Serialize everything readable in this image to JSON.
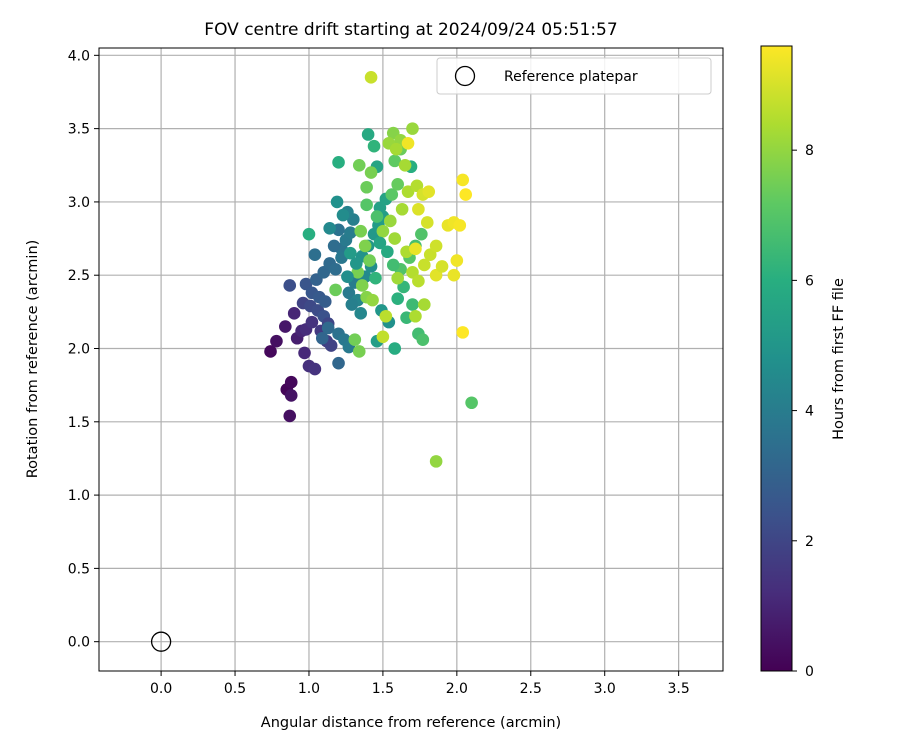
{
  "chart_data": {
    "type": "scatter",
    "title": "FOV centre drift starting at 2024/09/24 05:51:57",
    "xlabel": "Angular distance from reference (arcmin)",
    "ylabel": "Rotation from reference (arcmin)",
    "xlim": [
      -0.42,
      3.8
    ],
    "ylim": [
      -0.2,
      4.05
    ],
    "xticks": [
      "0.0",
      "0.5",
      "1.0",
      "1.5",
      "2.0",
      "2.5",
      "3.0",
      "3.5"
    ],
    "yticks": [
      "0.0",
      "0.5",
      "1.0",
      "1.5",
      "2.0",
      "2.5",
      "3.0",
      "3.5",
      "4.0"
    ],
    "grid": true,
    "colormap": "viridis",
    "colorbar": {
      "label": "Hours from first FF file",
      "ticks": [
        "0",
        "2",
        "4",
        "6",
        "8"
      ],
      "range": [
        0,
        9.6
      ]
    },
    "legend": {
      "location": "upper right",
      "entries": [
        {
          "label": "Reference platepar",
          "marker": "open-circle"
        }
      ]
    },
    "reference_point": {
      "x": 0.0,
      "y": 0.0
    },
    "series": [
      {
        "points": [
          [
            0.85,
            1.72,
            0.1
          ],
          [
            0.88,
            1.77,
            0.2
          ],
          [
            0.87,
            1.54,
            0.4
          ],
          [
            0.88,
            1.68,
            0.5
          ],
          [
            0.74,
            1.98,
            0.2
          ],
          [
            0.78,
            2.05,
            0.4
          ],
          [
            0.84,
            2.15,
            0.6
          ],
          [
            0.92,
            2.07,
            0.8
          ],
          [
            0.95,
            2.12,
            1.0
          ],
          [
            0.97,
            1.97,
            1.1
          ],
          [
            1.0,
            1.88,
            1.3
          ],
          [
            1.04,
            1.86,
            1.4
          ],
          [
            0.9,
            2.24,
            1.0
          ],
          [
            0.98,
            2.13,
            1.2
          ],
          [
            1.02,
            2.18,
            1.4
          ],
          [
            1.08,
            2.12,
            1.6
          ],
          [
            1.12,
            2.05,
            1.7
          ],
          [
            1.15,
            2.02,
            1.9
          ],
          [
            0.96,
            2.31,
            1.9
          ],
          [
            1.01,
            2.29,
            2.1
          ],
          [
            1.06,
            2.26,
            2.2
          ],
          [
            1.1,
            2.22,
            2.4
          ],
          [
            1.13,
            2.17,
            2.0
          ],
          [
            0.87,
            2.43,
            2.3
          ],
          [
            0.98,
            2.44,
            2.5
          ],
          [
            1.02,
            2.38,
            2.6
          ],
          [
            1.07,
            2.35,
            2.7
          ],
          [
            1.11,
            2.32,
            2.8
          ],
          [
            1.05,
            2.47,
            3.0
          ],
          [
            1.1,
            2.52,
            3.2
          ],
          [
            1.14,
            2.58,
            3.3
          ],
          [
            1.18,
            2.54,
            3.4
          ],
          [
            1.04,
            2.64,
            3.5
          ],
          [
            1.09,
            2.07,
            3.1
          ],
          [
            1.13,
            2.14,
            3.3
          ],
          [
            1.2,
            2.1,
            3.6
          ],
          [
            1.24,
            2.06,
            3.8
          ],
          [
            1.2,
            1.9,
            3.2
          ],
          [
            1.27,
            2.01,
            3.9
          ],
          [
            1.22,
            2.68,
            3.7
          ],
          [
            1.25,
            2.74,
            3.9
          ],
          [
            1.28,
            2.79,
            4.0
          ],
          [
            1.3,
            2.88,
            4.1
          ],
          [
            1.26,
            2.93,
            4.2
          ],
          [
            1.2,
            2.81,
            3.6
          ],
          [
            1.17,
            2.7,
            3.4
          ],
          [
            1.22,
            2.62,
            3.8
          ],
          [
            1.31,
            2.45,
            4.0
          ],
          [
            1.27,
            2.38,
            3.9
          ],
          [
            1.33,
            2.33,
            4.3
          ],
          [
            1.35,
            2.24,
            4.4
          ],
          [
            1.29,
            2.3,
            4.1
          ],
          [
            1.14,
            2.82,
            4.5
          ],
          [
            1.19,
            3.0,
            4.8
          ],
          [
            1.23,
            2.91,
            4.6
          ],
          [
            1.38,
            2.49,
            4.5
          ],
          [
            1.42,
            2.56,
            4.7
          ],
          [
            1.36,
            2.63,
            4.9
          ],
          [
            1.4,
            2.7,
            5.0
          ],
          [
            1.44,
            2.78,
            5.1
          ],
          [
            1.47,
            2.84,
            5.2
          ],
          [
            1.5,
            2.9,
            5.3
          ],
          [
            1.48,
            2.96,
            5.4
          ],
          [
            1.52,
            3.02,
            5.5
          ],
          [
            1.46,
            3.24,
            5.6
          ],
          [
            1.2,
            3.27,
            6.0
          ],
          [
            1.4,
            3.46,
            5.8
          ],
          [
            1.44,
            3.38,
            6.2
          ],
          [
            1.54,
            2.18,
            4.8
          ],
          [
            1.49,
            2.26,
            5.0
          ],
          [
            1.58,
            2.0,
            5.9
          ],
          [
            1.46,
            2.05,
            5.3
          ],
          [
            1.6,
            2.34,
            6.1
          ],
          [
            1.64,
            2.42,
            6.3
          ],
          [
            1.66,
            2.21,
            6.4
          ],
          [
            1.7,
            2.3,
            6.5
          ],
          [
            1.74,
            2.1,
            6.6
          ],
          [
            1.77,
            2.06,
            6.8
          ],
          [
            1.62,
            2.54,
            6.9
          ],
          [
            1.68,
            2.62,
            7.0
          ],
          [
            1.72,
            2.7,
            6.7
          ],
          [
            1.76,
            2.78,
            6.9
          ],
          [
            1.56,
            3.05,
            7.1
          ],
          [
            1.6,
            3.12,
            7.3
          ],
          [
            1.58,
            3.28,
            7.2
          ],
          [
            1.62,
            3.36,
            7.4
          ],
          [
            1.69,
            3.24,
            6.0
          ],
          [
            1.0,
            2.78,
            6.0
          ],
          [
            1.34,
            3.25,
            7.5
          ],
          [
            1.39,
            3.1,
            7.4
          ],
          [
            1.42,
            3.2,
            7.6
          ],
          [
            1.35,
            2.8,
            7.6
          ],
          [
            1.38,
            2.7,
            7.7
          ],
          [
            1.41,
            2.6,
            7.5
          ],
          [
            1.33,
            2.52,
            7.6
          ],
          [
            1.36,
            2.43,
            7.7
          ],
          [
            1.39,
            2.35,
            7.8
          ],
          [
            1.43,
            2.33,
            8.0
          ],
          [
            1.31,
            2.06,
            7.5
          ],
          [
            1.34,
            1.98,
            7.6
          ],
          [
            1.18,
            2.4,
            7.4
          ],
          [
            1.57,
            3.47,
            7.8
          ],
          [
            1.62,
            3.42,
            8.0
          ],
          [
            1.7,
            3.5,
            8.1
          ],
          [
            1.54,
            3.4,
            8.1
          ],
          [
            1.59,
            3.36,
            8.3
          ],
          [
            1.65,
            3.25,
            8.3
          ],
          [
            1.5,
            2.8,
            8.0
          ],
          [
            1.55,
            2.87,
            8.1
          ],
          [
            1.58,
            2.75,
            8.2
          ],
          [
            1.63,
            2.95,
            8.3
          ],
          [
            1.67,
            3.07,
            8.4
          ],
          [
            1.73,
            3.11,
            8.5
          ],
          [
            1.66,
            2.66,
            8.4
          ],
          [
            1.7,
            2.52,
            8.5
          ],
          [
            1.74,
            2.46,
            8.6
          ],
          [
            1.78,
            2.3,
            8.3
          ],
          [
            1.72,
            2.22,
            8.4
          ],
          [
            1.6,
            2.48,
            8.2
          ],
          [
            1.52,
            2.22,
            8.6
          ],
          [
            1.5,
            2.08,
            8.7
          ],
          [
            1.78,
            2.57,
            8.8
          ],
          [
            1.82,
            2.64,
            8.8
          ],
          [
            1.86,
            2.7,
            8.9
          ],
          [
            1.8,
            2.86,
            9.0
          ],
          [
            1.74,
            2.95,
            9.1
          ],
          [
            1.77,
            3.05,
            9.0
          ],
          [
            1.81,
            3.07,
            9.2
          ],
          [
            1.86,
            2.5,
            9.2
          ],
          [
            1.9,
            2.56,
            9.0
          ],
          [
            1.94,
            2.84,
            9.3
          ],
          [
            1.98,
            2.86,
            9.4
          ],
          [
            2.0,
            2.6,
            9.4
          ],
          [
            1.98,
            2.5,
            9.3
          ],
          [
            2.02,
            2.84,
            9.5
          ],
          [
            2.04,
            3.15,
            9.5
          ],
          [
            2.06,
            3.05,
            9.6
          ],
          [
            2.04,
            2.11,
            9.6
          ],
          [
            1.67,
            3.4,
            9.4
          ],
          [
            1.72,
            2.68,
            9.3
          ],
          [
            2.1,
            1.63,
            7.0
          ],
          [
            1.86,
            1.23,
            8.0
          ],
          [
            1.42,
            3.85,
            8.8
          ],
          [
            1.48,
            2.72,
            5.6
          ],
          [
            1.53,
            2.66,
            5.8
          ],
          [
            1.45,
            2.48,
            6.2
          ],
          [
            1.57,
            2.57,
            6.6
          ],
          [
            1.46,
            2.9,
            6.8
          ],
          [
            1.39,
            2.98,
            7.0
          ],
          [
            1.28,
            2.65,
            5.2
          ],
          [
            1.32,
            2.58,
            5.0
          ],
          [
            1.26,
            2.49,
            4.7
          ]
        ]
      }
    ]
  }
}
